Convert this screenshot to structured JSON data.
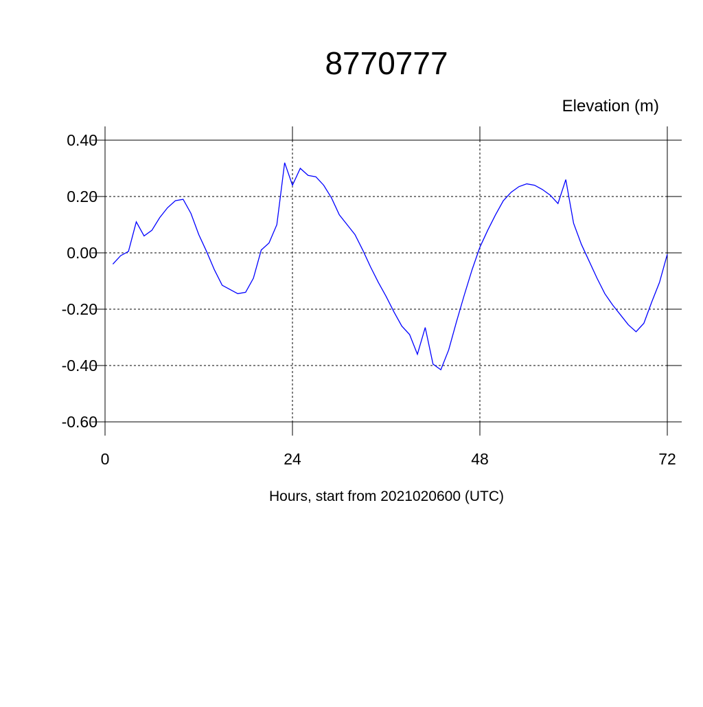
{
  "chart_data": {
    "type": "line",
    "title": "8770777",
    "subtitle": "Elevation (m)",
    "x_label": "Hours, start from 2021020600 (UTC)",
    "x": [
      1,
      2,
      3,
      4,
      5,
      6,
      7,
      8,
      9,
      10,
      11,
      12,
      13,
      14,
      15,
      16,
      17,
      18,
      19,
      20,
      21,
      22,
      23,
      24,
      25,
      26,
      27,
      28,
      29,
      30,
      31,
      32,
      33,
      34,
      35,
      36,
      37,
      38,
      39,
      40,
      41,
      42,
      43,
      44,
      45,
      46,
      47,
      48,
      49,
      50,
      51,
      52,
      53,
      54,
      55,
      56,
      57,
      58,
      59,
      60,
      61,
      62,
      63,
      64,
      65,
      66,
      67,
      68,
      69,
      70,
      71,
      72
    ],
    "series": [
      {
        "color": "#0000ff",
        "values": [
          -0.04,
          -0.01,
          0.005,
          0.11,
          0.06,
          0.08,
          0.125,
          0.16,
          0.185,
          0.19,
          0.14,
          0.065,
          0.005,
          -0.06,
          -0.115,
          -0.13,
          -0.145,
          -0.14,
          -0.09,
          0.01,
          0.035,
          0.1,
          0.32,
          0.24,
          0.3,
          0.275,
          0.27,
          0.24,
          0.195,
          0.135,
          0.1,
          0.065,
          0.01,
          -0.05,
          -0.105,
          -0.155,
          -0.21,
          -0.26,
          -0.29,
          -0.36,
          -0.265,
          -0.395,
          -0.415,
          -0.345,
          -0.245,
          -0.15,
          -0.06,
          0.02,
          0.08,
          0.135,
          0.185,
          0.215,
          0.235,
          0.245,
          0.24,
          0.225,
          0.205,
          0.175,
          0.26,
          0.105,
          0.03,
          -0.03,
          -0.09,
          -0.145,
          -0.185,
          -0.22,
          -0.255,
          -0.28,
          -0.25,
          -0.175,
          -0.105,
          -0.005
        ]
      }
    ],
    "xlim": [
      0,
      72
    ],
    "xticks": [
      0,
      24,
      48,
      72
    ],
    "ylim": [
      -0.6,
      0.4
    ],
    "yticks": [
      {
        "value": -0.6,
        "label": "-0.60"
      },
      {
        "value": -0.4,
        "label": "-0.40"
      },
      {
        "value": -0.2,
        "label": "-0.20"
      },
      {
        "value": 0,
        "label": "0.00"
      },
      {
        "value": 0.2,
        "label": "0.20"
      },
      {
        "value": 0.4,
        "label": "0.40"
      }
    ],
    "grid": true
  }
}
